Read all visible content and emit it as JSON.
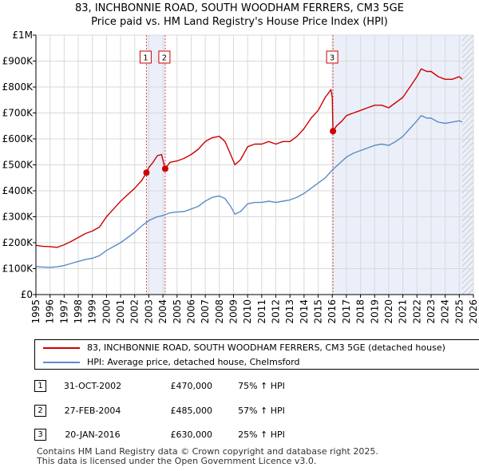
{
  "title_line1": "83, INCHBONNIE ROAD, SOUTH WOODHAM FERRERS, CM3 5GE",
  "title_line2": "Price paid vs. HM Land Registry's House Price Index (HPI)",
  "chart_data": {
    "type": "line",
    "xlim": [
      1995,
      2026
    ],
    "ylim": [
      0,
      1000000
    ],
    "y_ticks": [
      {
        "value": 0,
        "label": "£0"
      },
      {
        "value": 100000,
        "label": "£100K"
      },
      {
        "value": 200000,
        "label": "£200K"
      },
      {
        "value": 300000,
        "label": "£300K"
      },
      {
        "value": 400000,
        "label": "£400K"
      },
      {
        "value": 500000,
        "label": "£500K"
      },
      {
        "value": 600000,
        "label": "£600K"
      },
      {
        "value": 700000,
        "label": "£700K"
      },
      {
        "value": 800000,
        "label": "£800K"
      },
      {
        "value": 900000,
        "label": "£900K"
      },
      {
        "value": 1000000,
        "label": "£1M"
      }
    ],
    "x_ticks": [
      "1995",
      "1996",
      "1997",
      "1998",
      "1999",
      "2000",
      "2001",
      "2002",
      "2003",
      "2004",
      "2005",
      "2006",
      "2007",
      "2008",
      "2009",
      "2010",
      "2011",
      "2012",
      "2013",
      "2014",
      "2015",
      "2016",
      "2017",
      "2018",
      "2019",
      "2020",
      "2021",
      "2022",
      "2023",
      "2024",
      "2025",
      "2026"
    ],
    "colors": {
      "property": "#cc0000",
      "hpi": "#5b8bc9",
      "shade": "#dde5f5",
      "grid": "#d9d9d9"
    },
    "series": [
      {
        "name": "83, INCHBONNIE ROAD, SOUTH WOODHAM FERRERS, CM3 5GE (detached house)",
        "color": "#cc0000",
        "points": [
          [
            1995.0,
            190000
          ],
          [
            1995.5,
            186000
          ],
          [
            1996.0,
            185000
          ],
          [
            1996.5,
            182000
          ],
          [
            1997.0,
            192000
          ],
          [
            1997.5,
            205000
          ],
          [
            1998.0,
            220000
          ],
          [
            1998.5,
            235000
          ],
          [
            1999.0,
            245000
          ],
          [
            1999.5,
            260000
          ],
          [
            2000.0,
            300000
          ],
          [
            2000.5,
            330000
          ],
          [
            2001.0,
            360000
          ],
          [
            2001.5,
            385000
          ],
          [
            2002.0,
            410000
          ],
          [
            2002.5,
            440000
          ],
          [
            2002.83,
            470000
          ],
          [
            2003.0,
            490000
          ],
          [
            2003.3,
            510000
          ],
          [
            2003.6,
            535000
          ],
          [
            2003.9,
            540000
          ],
          [
            2004.16,
            485000
          ],
          [
            2004.5,
            510000
          ],
          [
            2005.0,
            515000
          ],
          [
            2005.5,
            525000
          ],
          [
            2006.0,
            540000
          ],
          [
            2006.5,
            560000
          ],
          [
            2007.0,
            590000
          ],
          [
            2007.5,
            605000
          ],
          [
            2008.0,
            610000
          ],
          [
            2008.4,
            590000
          ],
          [
            2008.8,
            540000
          ],
          [
            2009.1,
            500000
          ],
          [
            2009.5,
            520000
          ],
          [
            2010.0,
            570000
          ],
          [
            2010.5,
            580000
          ],
          [
            2011.0,
            580000
          ],
          [
            2011.5,
            590000
          ],
          [
            2012.0,
            580000
          ],
          [
            2012.5,
            590000
          ],
          [
            2013.0,
            590000
          ],
          [
            2013.5,
            610000
          ],
          [
            2014.0,
            640000
          ],
          [
            2014.5,
            680000
          ],
          [
            2015.0,
            710000
          ],
          [
            2015.5,
            760000
          ],
          [
            2015.9,
            790000
          ],
          [
            2016.0,
            760000
          ],
          [
            2016.05,
            630000
          ],
          [
            2016.3,
            650000
          ],
          [
            2016.7,
            670000
          ],
          [
            2017.0,
            690000
          ],
          [
            2017.5,
            700000
          ],
          [
            2018.0,
            710000
          ],
          [
            2018.5,
            720000
          ],
          [
            2019.0,
            730000
          ],
          [
            2019.5,
            730000
          ],
          [
            2020.0,
            720000
          ],
          [
            2020.5,
            740000
          ],
          [
            2021.0,
            760000
          ],
          [
            2021.5,
            800000
          ],
          [
            2022.0,
            840000
          ],
          [
            2022.3,
            870000
          ],
          [
            2022.7,
            860000
          ],
          [
            2023.0,
            860000
          ],
          [
            2023.5,
            840000
          ],
          [
            2024.0,
            830000
          ],
          [
            2024.5,
            830000
          ],
          [
            2025.0,
            840000
          ],
          [
            2025.2,
            830000
          ]
        ]
      },
      {
        "name": "HPI: Average price, detached house, Chelmsford",
        "color": "#5b8bc9",
        "points": [
          [
            1995.0,
            108000
          ],
          [
            1995.5,
            106000
          ],
          [
            1996.0,
            105000
          ],
          [
            1996.5,
            107000
          ],
          [
            1997.0,
            112000
          ],
          [
            1997.5,
            120000
          ],
          [
            1998.0,
            128000
          ],
          [
            1998.5,
            135000
          ],
          [
            1999.0,
            140000
          ],
          [
            1999.5,
            150000
          ],
          [
            2000.0,
            170000
          ],
          [
            2000.5,
            185000
          ],
          [
            2001.0,
            200000
          ],
          [
            2001.5,
            220000
          ],
          [
            2002.0,
            240000
          ],
          [
            2002.5,
            265000
          ],
          [
            2003.0,
            285000
          ],
          [
            2003.5,
            298000
          ],
          [
            2004.0,
            305000
          ],
          [
            2004.5,
            315000
          ],
          [
            2005.0,
            318000
          ],
          [
            2005.5,
            320000
          ],
          [
            2006.0,
            330000
          ],
          [
            2006.5,
            340000
          ],
          [
            2007.0,
            360000
          ],
          [
            2007.5,
            375000
          ],
          [
            2008.0,
            380000
          ],
          [
            2008.4,
            370000
          ],
          [
            2008.8,
            340000
          ],
          [
            2009.1,
            310000
          ],
          [
            2009.5,
            320000
          ],
          [
            2010.0,
            350000
          ],
          [
            2010.5,
            355000
          ],
          [
            2011.0,
            355000
          ],
          [
            2011.5,
            360000
          ],
          [
            2012.0,
            355000
          ],
          [
            2012.5,
            360000
          ],
          [
            2013.0,
            365000
          ],
          [
            2013.5,
            375000
          ],
          [
            2014.0,
            390000
          ],
          [
            2014.5,
            410000
          ],
          [
            2015.0,
            430000
          ],
          [
            2015.5,
            450000
          ],
          [
            2016.0,
            480000
          ],
          [
            2016.5,
            505000
          ],
          [
            2017.0,
            530000
          ],
          [
            2017.5,
            545000
          ],
          [
            2018.0,
            555000
          ],
          [
            2018.5,
            565000
          ],
          [
            2019.0,
            575000
          ],
          [
            2019.5,
            580000
          ],
          [
            2020.0,
            575000
          ],
          [
            2020.5,
            590000
          ],
          [
            2021.0,
            610000
          ],
          [
            2021.5,
            640000
          ],
          [
            2022.0,
            670000
          ],
          [
            2022.3,
            690000
          ],
          [
            2022.7,
            680000
          ],
          [
            2023.0,
            680000
          ],
          [
            2023.5,
            665000
          ],
          [
            2024.0,
            660000
          ],
          [
            2024.5,
            665000
          ],
          [
            2025.0,
            670000
          ],
          [
            2025.2,
            665000
          ]
        ]
      }
    ],
    "sales": [
      {
        "id": "1",
        "date": 2002.83,
        "price": 470000
      },
      {
        "id": "2",
        "date": 2004.16,
        "price": 485000
      },
      {
        "id": "3",
        "date": 2016.05,
        "price": 630000
      }
    ],
    "shaded_ranges": [
      [
        2002.83,
        2004.16
      ],
      [
        2016.05,
        2026
      ]
    ],
    "hatch_from": 2025.2
  },
  "legend": {
    "property_label": "83, INCHBONNIE ROAD, SOUTH WOODHAM FERRERS, CM3 5GE (detached house)",
    "hpi_label": "HPI: Average price, detached house, Chelmsford"
  },
  "transactions": [
    {
      "num": "1",
      "date": "31-OCT-2002",
      "price": "£470,000",
      "hpi": "75% ↑ HPI"
    },
    {
      "num": "2",
      "date": "27-FEB-2004",
      "price": "£485,000",
      "hpi": "57% ↑ HPI"
    },
    {
      "num": "3",
      "date": "20-JAN-2016",
      "price": "£630,000",
      "hpi": "25% ↑ HPI"
    }
  ],
  "footer": {
    "line1": "Contains HM Land Registry data © Crown copyright and database right 2025.",
    "line2": "This data is licensed under the Open Government Licence v3.0."
  }
}
